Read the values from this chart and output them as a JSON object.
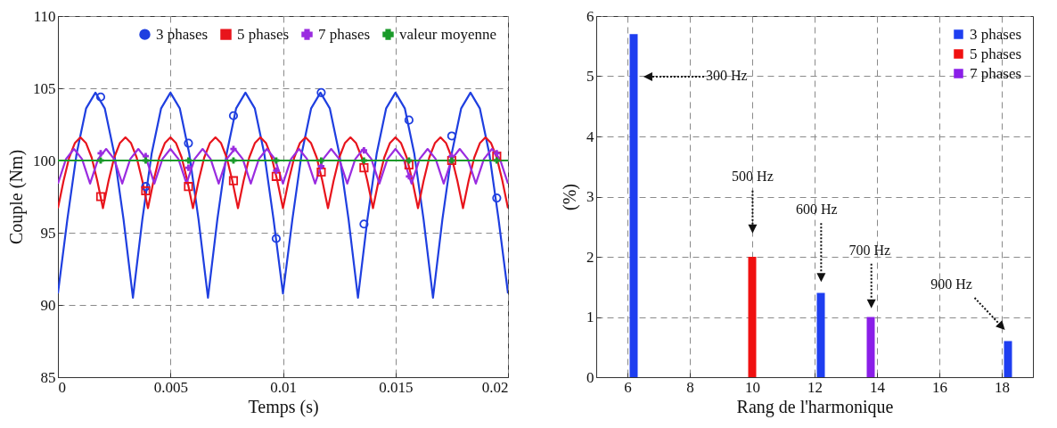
{
  "chart_data": [
    {
      "type": "line",
      "xlabel": "Temps (s)",
      "ylabel": "Couple (Nm)",
      "xlim": [
        0,
        0.02
      ],
      "ylim": [
        85,
        110
      ],
      "xticks": [
        0,
        0.005,
        0.01,
        0.015,
        0.02
      ],
      "yticks": [
        85,
        90,
        95,
        100,
        105,
        110
      ],
      "grid": true,
      "legend": "top right",
      "series": [
        {
          "color": "#1f3fe0",
          "x": [
            0,
            0.000417,
            0.000833,
            0.00125,
            0.001667,
            0.002083,
            0.0025,
            0.002917,
            0.003333,
            0.00375,
            0.004167,
            0.004583,
            0.005,
            0.005417,
            0.005833,
            0.00625,
            0.006667,
            0.007083,
            0.0075,
            0.007917,
            0.008333,
            0.00875,
            0.009167,
            0.009583,
            0.01,
            0.010417,
            0.010833,
            0.01125,
            0.011667,
            0.012083,
            0.0125,
            0.012917,
            0.013333,
            0.01375,
            0.014167,
            0.014583,
            0.015,
            0.015417,
            0.015833,
            0.01625,
            0.016667,
            0.017083,
            0.0175,
            0.017917,
            0.018333,
            0.01875,
            0.019167,
            0.019583,
            0.02
          ],
          "values": [
            90.8,
            95.9,
            100.5,
            103.6,
            104.7,
            103.6,
            100.5,
            95.9,
            90.5,
            95.9,
            100.5,
            103.6,
            104.7,
            103.6,
            100.5,
            95.9,
            90.5,
            95.9,
            100.5,
            103.6,
            104.7,
            103.6,
            100.5,
            95.9,
            90.8,
            95.9,
            100.5,
            103.6,
            104.7,
            103.6,
            100.5,
            95.9,
            90.5,
            95.9,
            100.5,
            103.6,
            104.7,
            103.6,
            100.5,
            95.9,
            90.5,
            95.9,
            100.5,
            103.6,
            104.7,
            103.6,
            100.5,
            95.9,
            90.8
          ]
        },
        {
          "color": "#e8141c",
          "x": [
            0,
            0.00025,
            0.0005,
            0.00075,
            0.001,
            0.00125,
            0.0015,
            0.00175,
            0.002,
            0.00225,
            0.0025,
            0.00275,
            0.003,
            0.00325,
            0.0035,
            0.00375,
            0.004,
            0.00425,
            0.0045,
            0.00475,
            0.005,
            0.00525,
            0.0055,
            0.00575,
            0.006,
            0.00625,
            0.0065,
            0.00675,
            0.007,
            0.00725,
            0.0075,
            0.00775,
            0.008,
            0.00825,
            0.0085,
            0.00875,
            0.009,
            0.00925,
            0.0095,
            0.00975,
            0.01,
            0.01025,
            0.0105,
            0.01075,
            0.011,
            0.01125,
            0.0115,
            0.01175,
            0.012,
            0.01225,
            0.0125,
            0.01275,
            0.013,
            0.01325,
            0.0135,
            0.01375,
            0.014,
            0.01425,
            0.0145,
            0.01475,
            0.015,
            0.01525,
            0.0155,
            0.01575,
            0.016,
            0.01625,
            0.0165,
            0.01675,
            0.017,
            0.01725,
            0.0175,
            0.01775,
            0.018,
            0.01825,
            0.0185,
            0.01875,
            0.019,
            0.01925,
            0.0195,
            0.01975,
            0.02
          ],
          "values": [
            96.7,
            98.6,
            100.2,
            101.2,
            101.6,
            101.2,
            100.2,
            98.6,
            96.7,
            98.6,
            100.2,
            101.2,
            101.6,
            101.2,
            100.2,
            98.6,
            96.7,
            98.6,
            100.2,
            101.2,
            101.6,
            101.2,
            100.2,
            98.6,
            96.7,
            98.6,
            100.2,
            101.2,
            101.6,
            101.2,
            100.2,
            98.6,
            96.7,
            98.6,
            100.2,
            101.2,
            101.6,
            101.2,
            100.2,
            98.6,
            96.7,
            98.6,
            100.2,
            101.2,
            101.6,
            101.2,
            100.2,
            98.6,
            96.7,
            98.6,
            100.2,
            101.2,
            101.6,
            101.2,
            100.2,
            98.6,
            96.7,
            98.6,
            100.2,
            101.2,
            101.6,
            101.2,
            100.2,
            98.6,
            96.7,
            98.6,
            100.2,
            101.2,
            101.6,
            101.2,
            100.2,
            98.6,
            96.7,
            98.6,
            100.2,
            101.2,
            101.6,
            101.2,
            100.2,
            98.6,
            96.7
          ]
        },
        {
          "color": "#9a2ce0",
          "x": [
            0,
            0.000357,
            0.000714,
            0.001071,
            0.001429,
            0.001786,
            0.002143,
            0.0025,
            0.002857,
            0.003214,
            0.003571,
            0.003929,
            0.004286,
            0.004643,
            0.005,
            0.005357,
            0.005714,
            0.006071,
            0.006429,
            0.006786,
            0.007143,
            0.0075,
            0.007857,
            0.008214,
            0.008571,
            0.008929,
            0.009286,
            0.009643,
            0.01,
            0.010357,
            0.010714,
            0.011071,
            0.011429,
            0.011786,
            0.012143,
            0.0125,
            0.012857,
            0.013214,
            0.013571,
            0.013929,
            0.014286,
            0.014643,
            0.015,
            0.015357,
            0.015714,
            0.016071,
            0.016429,
            0.016786,
            0.017143,
            0.0175,
            0.017857,
            0.018214,
            0.018571,
            0.018929,
            0.019286,
            0.019643,
            0.02
          ],
          "values": [
            98.4,
            100.1,
            100.8,
            100.1,
            98.4,
            100.1,
            100.8,
            100.1,
            98.4,
            100.1,
            100.8,
            100.1,
            98.4,
            100.1,
            100.8,
            100.1,
            98.4,
            100.1,
            100.8,
            100.1,
            98.4,
            100.1,
            100.8,
            100.1,
            98.4,
            100.1,
            100.8,
            100.1,
            98.4,
            100.1,
            100.8,
            100.1,
            98.4,
            100.1,
            100.8,
            100.1,
            98.4,
            100.1,
            100.8,
            100.1,
            98.4,
            100.1,
            100.8,
            100.1,
            98.4,
            100.1,
            100.8,
            100.1,
            98.4,
            100.1,
            100.8,
            100.1,
            98.4,
            100.1,
            100.8,
            100.1,
            98.4
          ]
        },
        {
          "color": "#1a9a2a",
          "x": [
            0,
            0.02
          ],
          "values": [
            100,
            100
          ]
        },
        {
          "name": "3 phases",
          "type": "scatter",
          "marker": "circle",
          "color": "#1f3fe0",
          "x": [
            0.0019,
            0.0039,
            0.0058,
            0.0078,
            0.0097,
            0.0117,
            0.0136,
            0.0156,
            0.0175,
            0.0195
          ],
          "values": [
            104.4,
            98.2,
            101.2,
            103.1,
            94.6,
            104.7,
            95.6,
            102.8,
            101.7,
            97.4
          ]
        },
        {
          "name": "5 phases",
          "type": "scatter",
          "marker": "square",
          "color": "#e8141c",
          "x": [
            0.0019,
            0.0039,
            0.0058,
            0.0078,
            0.0097,
            0.0117,
            0.0136,
            0.0156,
            0.0175,
            0.0195
          ],
          "values": [
            97.5,
            97.9,
            98.2,
            98.6,
            98.9,
            99.2,
            99.5,
            99.7,
            100,
            100.3
          ]
        },
        {
          "name": "7 phases",
          "type": "scatter",
          "marker": "cross",
          "color": "#9a2ce0",
          "x": [
            0.0019,
            0.0039,
            0.0058,
            0.0078,
            0.0097,
            0.0117,
            0.0136,
            0.0156,
            0.0175,
            0.0195
          ],
          "values": [
            100.5,
            100.3,
            99.5,
            100.8,
            99.3,
            99.6,
            100.7,
            98.9,
            100.3,
            100.5
          ]
        },
        {
          "name": "valeur moyenne",
          "type": "scatter",
          "marker": "cross",
          "color": "#1a9a2a",
          "x": [
            0.0019,
            0.0039,
            0.0058,
            0.0078,
            0.0097,
            0.0117,
            0.0136,
            0.0156,
            0.0175,
            0.0195
          ],
          "values": [
            100,
            100,
            100,
            100,
            100,
            100,
            100,
            100,
            100,
            100
          ]
        }
      ]
    },
    {
      "type": "bar",
      "xlabel": "Rang de l'harmonique",
      "ylabel": "(%)",
      "xlim": [
        5,
        19
      ],
      "ylim": [
        0,
        6
      ],
      "xticks": [
        6,
        8,
        10,
        12,
        14,
        16,
        18
      ],
      "yticks": [
        0,
        1,
        2,
        3,
        4,
        5,
        6
      ],
      "grid": true,
      "legend": "top right",
      "series": [
        {
          "name": "3 phases",
          "color": "#1e3ef0",
          "x": [
            6.2,
            12.2,
            18.2
          ],
          "values": [
            5.7,
            1.4,
            0.6
          ]
        },
        {
          "name": "5 phases",
          "color": "#f01010",
          "x": [
            10
          ],
          "values": [
            2.0
          ]
        },
        {
          "name": "7 phases",
          "color": "#8a1ee8",
          "x": [
            13.8
          ],
          "values": [
            1.0
          ]
        }
      ],
      "annotations": [
        "300 Hz",
        "500 Hz",
        "600 Hz",
        "700 Hz",
        "900 Hz"
      ]
    }
  ]
}
